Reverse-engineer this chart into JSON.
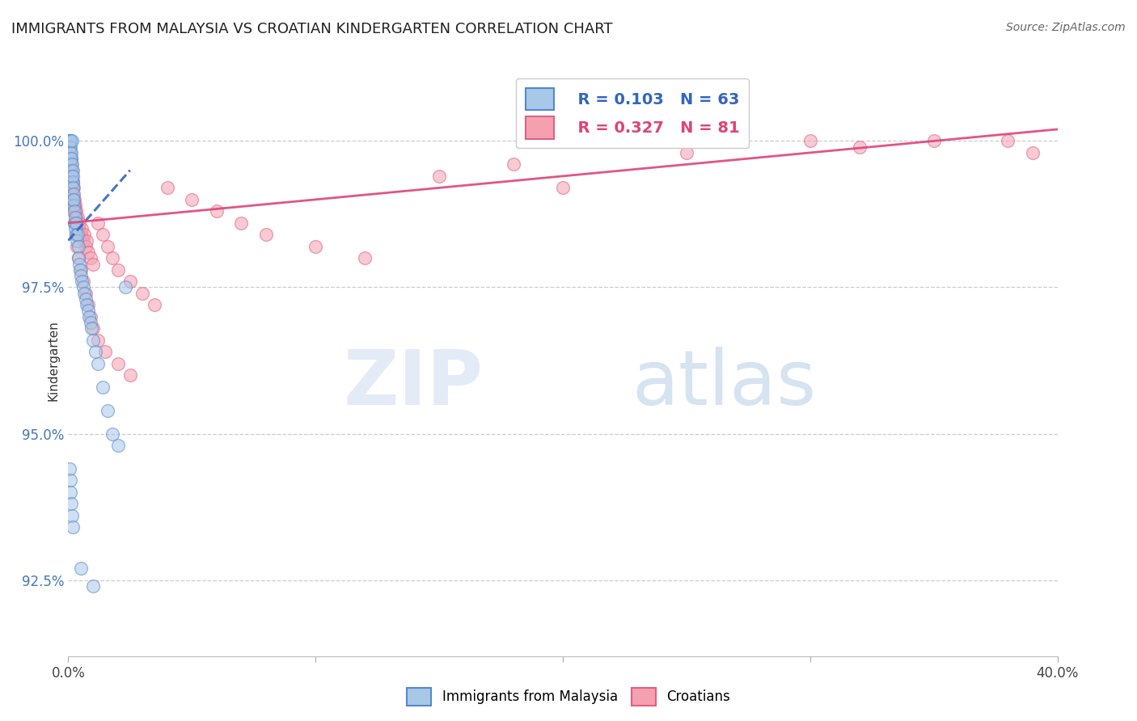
{
  "title": "IMMIGRANTS FROM MALAYSIA VS CROATIAN KINDERGARTEN CORRELATION CHART",
  "source": "Source: ZipAtlas.com",
  "ylabel": "Kindergarten",
  "ytick_values": [
    92.5,
    95.0,
    97.5,
    100.0
  ],
  "xlim": [
    0.0,
    40.0
  ],
  "ylim": [
    91.2,
    101.3
  ],
  "legend_r1": "R = 0.103",
  "legend_n1": "N = 63",
  "legend_r2": "R = 0.327",
  "legend_n2": "N = 81",
  "blue_color": "#a8c8e8",
  "pink_color": "#f4a0b0",
  "blue_edge_color": "#5588cc",
  "pink_edge_color": "#e06080",
  "blue_line_color": "#3366bb",
  "pink_line_color": "#dd4477",
  "background_color": "#ffffff",
  "blue_scatter_x": [
    0.05,
    0.05,
    0.05,
    0.07,
    0.08,
    0.08,
    0.09,
    0.1,
    0.1,
    0.1,
    0.12,
    0.12,
    0.13,
    0.14,
    0.15,
    0.15,
    0.16,
    0.17,
    0.18,
    0.19,
    0.2,
    0.2,
    0.21,
    0.22,
    0.23,
    0.25,
    0.25,
    0.27,
    0.28,
    0.3,
    0.32,
    0.35,
    0.38,
    0.4,
    0.42,
    0.45,
    0.48,
    0.5,
    0.55,
    0.6,
    0.65,
    0.7,
    0.75,
    0.8,
    0.85,
    0.9,
    0.95,
    1.0,
    1.1,
    1.2,
    1.4,
    1.6,
    1.8,
    2.0,
    2.3,
    0.06,
    0.08,
    0.1,
    0.12,
    0.15,
    0.18,
    0.5,
    1.0
  ],
  "blue_scatter_y": [
    100.0,
    100.0,
    100.0,
    100.0,
    100.0,
    99.8,
    100.0,
    99.9,
    99.7,
    99.6,
    99.8,
    99.5,
    99.7,
    99.6,
    99.4,
    100.0,
    99.3,
    99.5,
    99.3,
    99.4,
    99.2,
    99.0,
    99.1,
    98.9,
    99.0,
    98.8,
    98.6,
    98.7,
    98.5,
    98.6,
    98.4,
    98.3,
    98.4,
    98.2,
    98.0,
    97.9,
    97.8,
    97.7,
    97.6,
    97.5,
    97.4,
    97.3,
    97.2,
    97.1,
    97.0,
    96.9,
    96.8,
    96.6,
    96.4,
    96.2,
    95.8,
    95.4,
    95.0,
    94.8,
    97.5,
    94.4,
    94.2,
    94.0,
    93.8,
    93.6,
    93.4,
    92.7,
    92.4
  ],
  "pink_scatter_x": [
    0.05,
    0.06,
    0.07,
    0.08,
    0.09,
    0.1,
    0.11,
    0.12,
    0.13,
    0.14,
    0.15,
    0.16,
    0.17,
    0.18,
    0.19,
    0.2,
    0.22,
    0.24,
    0.25,
    0.27,
    0.28,
    0.3,
    0.32,
    0.35,
    0.38,
    0.4,
    0.45,
    0.5,
    0.55,
    0.6,
    0.65,
    0.7,
    0.75,
    0.8,
    0.9,
    1.0,
    1.2,
    1.4,
    1.6,
    1.8,
    2.0,
    2.5,
    3.0,
    3.5,
    4.0,
    5.0,
    6.0,
    7.0,
    8.0,
    10.0,
    12.0,
    15.0,
    18.0,
    20.0,
    25.0,
    30.0,
    32.0,
    35.0,
    38.0,
    39.0,
    0.05,
    0.08,
    0.1,
    0.12,
    0.15,
    0.18,
    0.2,
    0.25,
    0.3,
    0.35,
    0.4,
    0.5,
    0.6,
    0.7,
    0.8,
    0.9,
    1.0,
    1.2,
    1.5,
    2.0,
    2.5
  ],
  "pink_scatter_y": [
    99.8,
    99.9,
    99.7,
    99.8,
    99.6,
    99.5,
    99.7,
    99.4,
    99.6,
    99.3,
    99.5,
    99.4,
    99.2,
    99.3,
    99.1,
    99.0,
    99.2,
    98.9,
    99.0,
    98.8,
    98.9,
    98.7,
    98.8,
    98.6,
    98.7,
    98.5,
    98.6,
    98.4,
    98.5,
    98.3,
    98.4,
    98.2,
    98.3,
    98.1,
    98.0,
    97.9,
    98.6,
    98.4,
    98.2,
    98.0,
    97.8,
    97.6,
    97.4,
    97.2,
    99.2,
    99.0,
    98.8,
    98.6,
    98.4,
    98.2,
    98.0,
    99.4,
    99.6,
    99.2,
    99.8,
    100.0,
    99.9,
    100.0,
    100.0,
    99.8,
    99.9,
    99.7,
    99.5,
    99.3,
    99.1,
    99.0,
    98.8,
    98.6,
    98.4,
    98.2,
    98.0,
    97.8,
    97.6,
    97.4,
    97.2,
    97.0,
    96.8,
    96.6,
    96.4,
    96.2,
    96.0
  ],
  "blue_trend_x": [
    0.0,
    2.5
  ],
  "blue_trend_y": [
    98.3,
    99.5
  ],
  "pink_trend_x": [
    0.0,
    40.0
  ],
  "pink_trend_y": [
    98.6,
    100.2
  ]
}
